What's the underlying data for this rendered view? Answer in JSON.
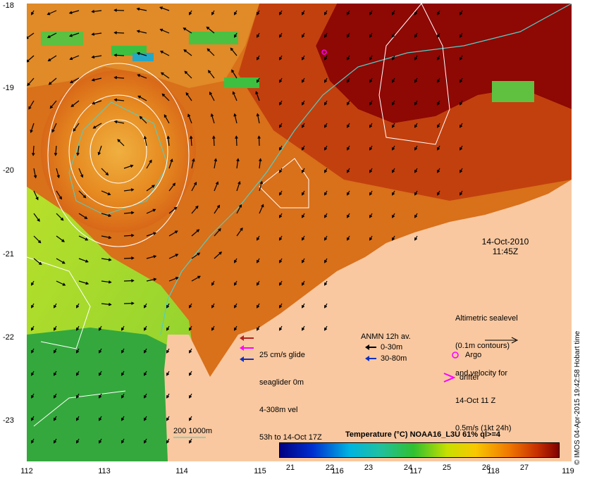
{
  "map": {
    "x_ticks": [
      "112",
      "113",
      "114",
      "115",
      "116",
      "117",
      "118",
      "119"
    ],
    "y_ticks": [
      "-18",
      "-19",
      "-20",
      "-21",
      "-22",
      "-23"
    ],
    "colors": {
      "land": "#f9c8a0",
      "warm": "#c8320a",
      "hot": "#8c0000",
      "mid": "#e07d10",
      "green": "#3fbf3f",
      "lime": "#a8e020",
      "contour": "#ffffff",
      "bathy": "#4fd0c8"
    }
  },
  "date": {
    "line1": "14-Oct-2010",
    "line2": "11:45Z"
  },
  "legend_altimetry": {
    "line1": "Altimetric sealevel",
    "line2": "(0.1m contours)",
    "line3": "and velocity for",
    "line4": "14-Oct 11 Z",
    "line5": "0.5m/s (1kt 24h)"
  },
  "legend_glider": {
    "item1": "25 cm/s glide",
    "item2": "seaglider 0m",
    "item3": "4-308m vel",
    "item4": "53h to 14-Oct 17Z"
  },
  "legend_anmn": {
    "title": "ANMN 12h av.",
    "item1": "0-30m",
    "item2": "30-80m"
  },
  "legend_markers": {
    "argo": "Argo",
    "drifter": "drifter"
  },
  "bathy_label": "200 1000m",
  "colorbar": {
    "title": "Temperature (°C) NOAA16_L3U 61% ql>=4",
    "ticks": [
      "21",
      "22",
      "23",
      "24",
      "25",
      "26",
      "27"
    ]
  },
  "credit": "© IMOS 04-Apr-2015 19:42:58 Hobart time"
}
